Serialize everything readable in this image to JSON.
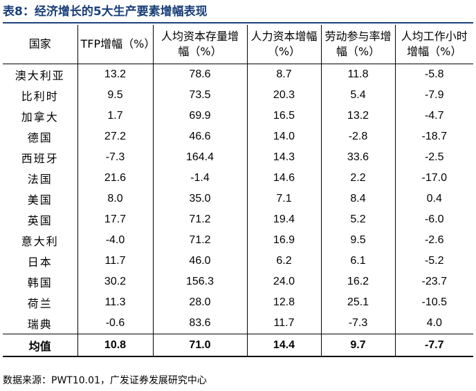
{
  "title": "表8：经济增长的5大生产要素增幅表现",
  "headers": [
    "国家",
    "TFP增幅（%）",
    "人均资本存量增幅（%）",
    "人力资本增幅（%）",
    "劳动参与率增幅（%）",
    "人均工作小时增幅（%）"
  ],
  "rows": [
    [
      "澳大利亚",
      "13.2",
      "78.6",
      "8.7",
      "11.8",
      "-5.8"
    ],
    [
      "比利时",
      "9.5",
      "73.5",
      "20.3",
      "5.4",
      "-7.9"
    ],
    [
      "加拿大",
      "1.7",
      "69.9",
      "16.5",
      "13.2",
      "-4.7"
    ],
    [
      "德国",
      "27.2",
      "46.6",
      "14.0",
      "-2.8",
      "-18.7"
    ],
    [
      "西班牙",
      "-7.3",
      "164.4",
      "14.3",
      "33.6",
      "-2.5"
    ],
    [
      "法国",
      "21.6",
      "-1.4",
      "14.6",
      "2.2",
      "-17.0"
    ],
    [
      "美国",
      "8.0",
      "35.0",
      "7.1",
      "8.4",
      "0.4"
    ],
    [
      "英国",
      "17.7",
      "71.2",
      "19.4",
      "5.2",
      "-6.0"
    ],
    [
      "意大利",
      "-4.0",
      "71.2",
      "16.9",
      "9.5",
      "-2.6"
    ],
    [
      "日本",
      "11.7",
      "46.0",
      "6.2",
      "6.1",
      "-5.2"
    ],
    [
      "韩国",
      "30.2",
      "156.3",
      "24.0",
      "16.2",
      "-23.7"
    ],
    [
      "荷兰",
      "11.3",
      "28.0",
      "12.8",
      "25.1",
      "-10.5"
    ],
    [
      "瑞典",
      "-0.6",
      "83.6",
      "11.7",
      "-7.3",
      "4.0"
    ]
  ],
  "average": [
    "均值",
    "10.8",
    "71.0",
    "14.4",
    "9.7",
    "-7.7"
  ],
  "source": "数据来源：PWT10.01，广发证券发展研究中心"
}
